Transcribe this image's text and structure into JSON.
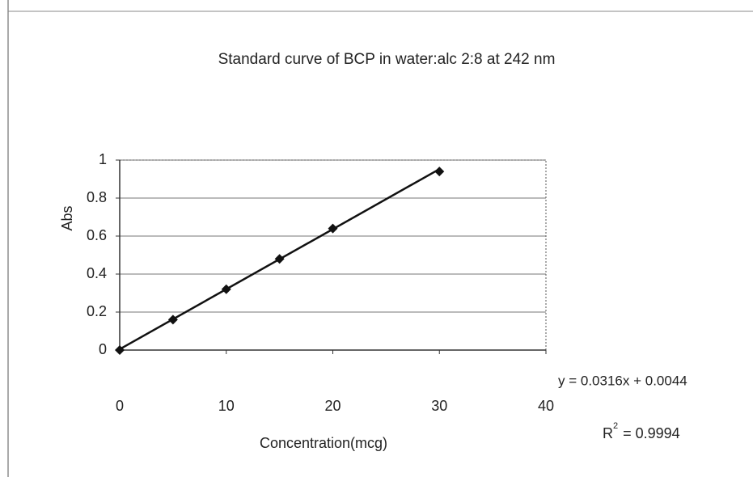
{
  "chart_data": {
    "type": "scatter",
    "title": "Standard curve of BCP in  water:alc  2:8 at 242 nm",
    "x_label": "Concentration(mcg)",
    "y_label": "Abs",
    "x": [
      0,
      5,
      10,
      15,
      20,
      30
    ],
    "values": [
      0,
      0.16,
      0.32,
      0.48,
      0.64,
      0.94
    ],
    "color": "#111111",
    "xlim": [
      0,
      40
    ],
    "ylim": [
      0,
      1
    ],
    "xticks": [
      0,
      10,
      20,
      30,
      40
    ],
    "yticks": [
      0,
      0.2,
      0.4,
      0.6,
      0.8,
      1
    ],
    "grid": true,
    "trendline": {
      "slope": 0.0316,
      "intercept": 0.0044,
      "equation": "y = 0.0316x + 0.0044",
      "r_squared": {
        "base": "R",
        "sup": "2",
        "rest": "= 0.9994"
      }
    }
  }
}
